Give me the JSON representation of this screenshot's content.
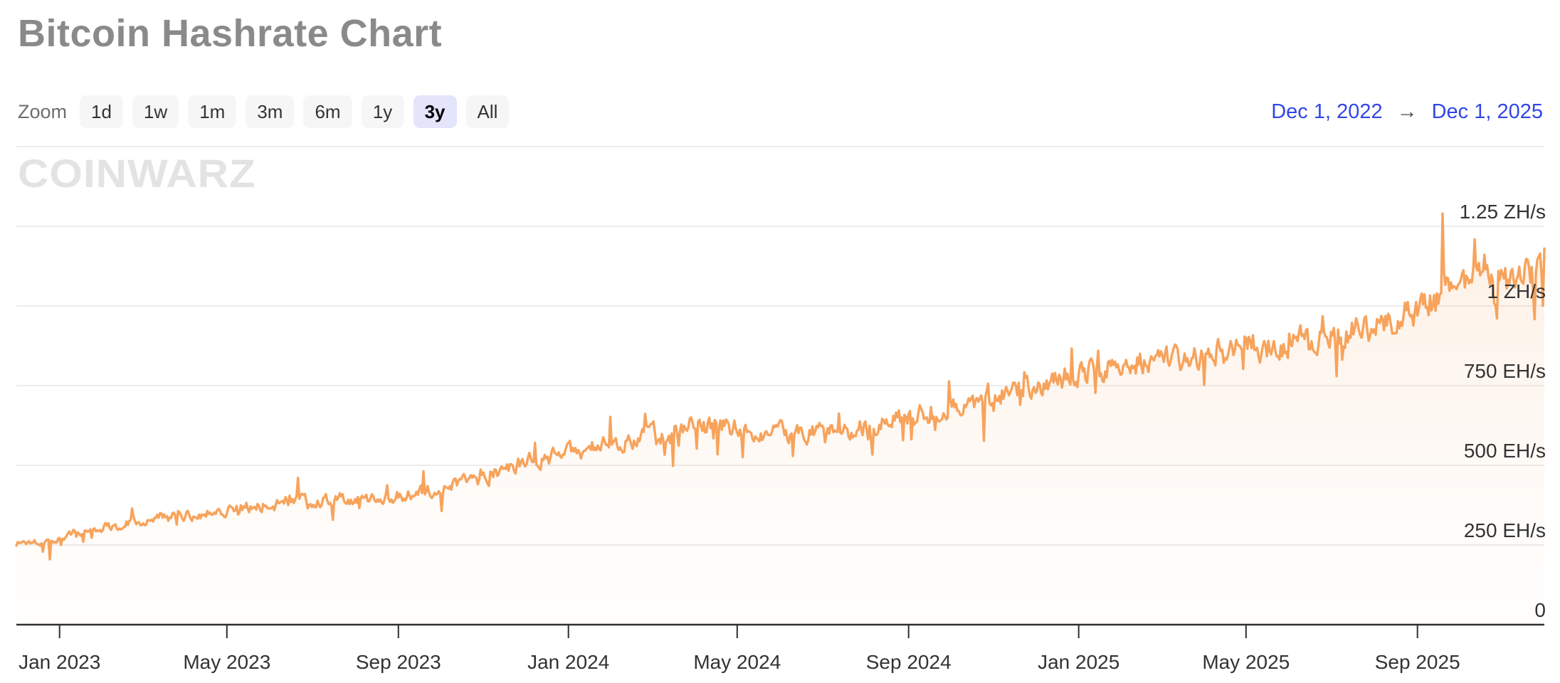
{
  "header": {
    "title": "Bitcoin Hashrate Chart"
  },
  "controls": {
    "zoom_label": "Zoom",
    "zoom_options": [
      {
        "label": "1d",
        "selected": false
      },
      {
        "label": "1w",
        "selected": false
      },
      {
        "label": "1m",
        "selected": false
      },
      {
        "label": "3m",
        "selected": false
      },
      {
        "label": "6m",
        "selected": false
      },
      {
        "label": "1y",
        "selected": false
      },
      {
        "label": "3y",
        "selected": true
      },
      {
        "label": "All",
        "selected": false
      }
    ],
    "date_range": {
      "start": "Dec 1, 2022",
      "arrow": "→",
      "end": "Dec 1, 2025"
    }
  },
  "watermark": "CoinWarz",
  "colors": {
    "line": "#f7a35c",
    "title": "#8a8a8a",
    "button_bg": "#f6f6f6",
    "selected_button_bg": "#e4e4fa",
    "date_link": "#3246e8",
    "grid": "#e6e6e6",
    "axis": "#2f2f2f",
    "tick_text": "#333333",
    "watermark": "#e3e3e3"
  },
  "chart_data": {
    "type": "area",
    "title": "Bitcoin Hashrate",
    "unit": "EH/s",
    "x_range": [
      "2022-12-01",
      "2025-12-01"
    ],
    "ylim": [
      0,
      1500
    ],
    "grid": true,
    "legend": false,
    "x_ticks": [
      {
        "label": "Jan 2023",
        "date": "2023-01-01"
      },
      {
        "label": "May 2023",
        "date": "2023-05-01"
      },
      {
        "label": "Sep 2023",
        "date": "2023-09-01"
      },
      {
        "label": "Jan 2024",
        "date": "2024-01-01"
      },
      {
        "label": "May 2024",
        "date": "2024-05-01"
      },
      {
        "label": "Sep 2024",
        "date": "2024-09-01"
      },
      {
        "label": "Jan 2025",
        "date": "2025-01-01"
      },
      {
        "label": "May 2025",
        "date": "2025-05-01"
      },
      {
        "label": "Sep 2025",
        "date": "2025-09-01"
      }
    ],
    "y_ticks": [
      {
        "label": "1.25 ZH/s",
        "value": 1250
      },
      {
        "label": "1 ZH/s",
        "value": 1000
      },
      {
        "label": "750 EH/s",
        "value": 750
      },
      {
        "label": "500 EH/s",
        "value": 500
      },
      {
        "label": "250 EH/s",
        "value": 250
      },
      {
        "label": "0",
        "value": 0
      }
    ],
    "y_gridline_values": [
      1500,
      1250,
      1000,
      750,
      500,
      250
    ],
    "series": [
      {
        "name": "Hashrate (EH/s)",
        "sampling": "daily line; values estimated from chart as monthly anchors with ~±7% day-to-day noise",
        "monthly_anchors": [
          {
            "month": "2022-12",
            "value": 255
          },
          {
            "month": "2023-01",
            "value": 272
          },
          {
            "month": "2023-02",
            "value": 305
          },
          {
            "month": "2023-03",
            "value": 330
          },
          {
            "month": "2023-04",
            "value": 342
          },
          {
            "month": "2023-05",
            "value": 362
          },
          {
            "month": "2023-06",
            "value": 378
          },
          {
            "month": "2023-07",
            "value": 388
          },
          {
            "month": "2023-08",
            "value": 393
          },
          {
            "month": "2023-09",
            "value": 407
          },
          {
            "month": "2023-10",
            "value": 426
          },
          {
            "month": "2023-11",
            "value": 462
          },
          {
            "month": "2023-12",
            "value": 506
          },
          {
            "month": "2024-01",
            "value": 540
          },
          {
            "month": "2024-02",
            "value": 566
          },
          {
            "month": "2024-03",
            "value": 598
          },
          {
            "month": "2024-04",
            "value": 624
          },
          {
            "month": "2024-05",
            "value": 616
          },
          {
            "month": "2024-06",
            "value": 600
          },
          {
            "month": "2024-07",
            "value": 598
          },
          {
            "month": "2024-08",
            "value": 622
          },
          {
            "month": "2024-09",
            "value": 648
          },
          {
            "month": "2024-10",
            "value": 684
          },
          {
            "month": "2024-11",
            "value": 716
          },
          {
            "month": "2024-12",
            "value": 758
          },
          {
            "month": "2025-01",
            "value": 790
          },
          {
            "month": "2025-02",
            "value": 810
          },
          {
            "month": "2025-03",
            "value": 832
          },
          {
            "month": "2025-04",
            "value": 852
          },
          {
            "month": "2025-05",
            "value": 872
          },
          {
            "month": "2025-06",
            "value": 886
          },
          {
            "month": "2025-07",
            "value": 906
          },
          {
            "month": "2025-08",
            "value": 938
          },
          {
            "month": "2025-09",
            "value": 986
          },
          {
            "month": "2025-10",
            "value": 1085
          },
          {
            "month": "2025-11",
            "value": 1060
          },
          {
            "month": "2025-12",
            "value": 1115
          }
        ],
        "events": {
          "dip": {
            "date": "2022-12-25",
            "value": 205
          },
          "peak": {
            "date": "2025-09-19",
            "value": 1290
          },
          "last": {
            "date": "2025-12-01",
            "value": 1180
          }
        }
      }
    ]
  }
}
